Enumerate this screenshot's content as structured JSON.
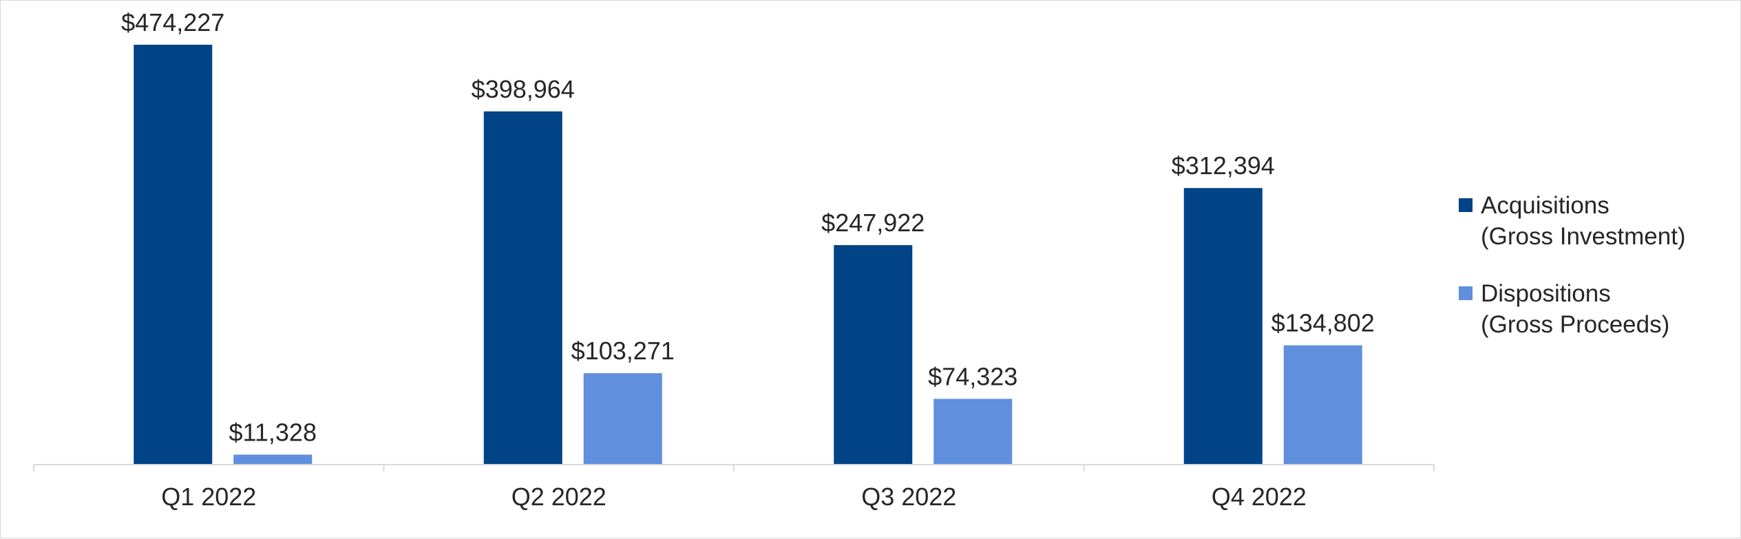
{
  "chart_data": {
    "type": "bar",
    "categories": [
      "Q1 2022",
      "Q2 2022",
      "Q3 2022",
      "Q4 2022"
    ],
    "series": [
      {
        "name": "Acquisitions\n(Gross Investment)",
        "color": "#004386",
        "values": [
          474227,
          398964,
          247922,
          312394
        ],
        "labels": [
          "$474,227",
          "$398,964",
          "$247,922",
          "$312,394"
        ]
      },
      {
        "name": "Dispositions\n(Gross Proceeds)",
        "color": "#5f8fdd",
        "values": [
          11328,
          103271,
          74323,
          134802
        ],
        "labels": [
          "$11,328",
          "$103,271",
          "$74,323",
          "$134,802"
        ]
      }
    ],
    "ylim": [
      0,
      474227
    ],
    "grid": false,
    "legend_position": "right"
  }
}
